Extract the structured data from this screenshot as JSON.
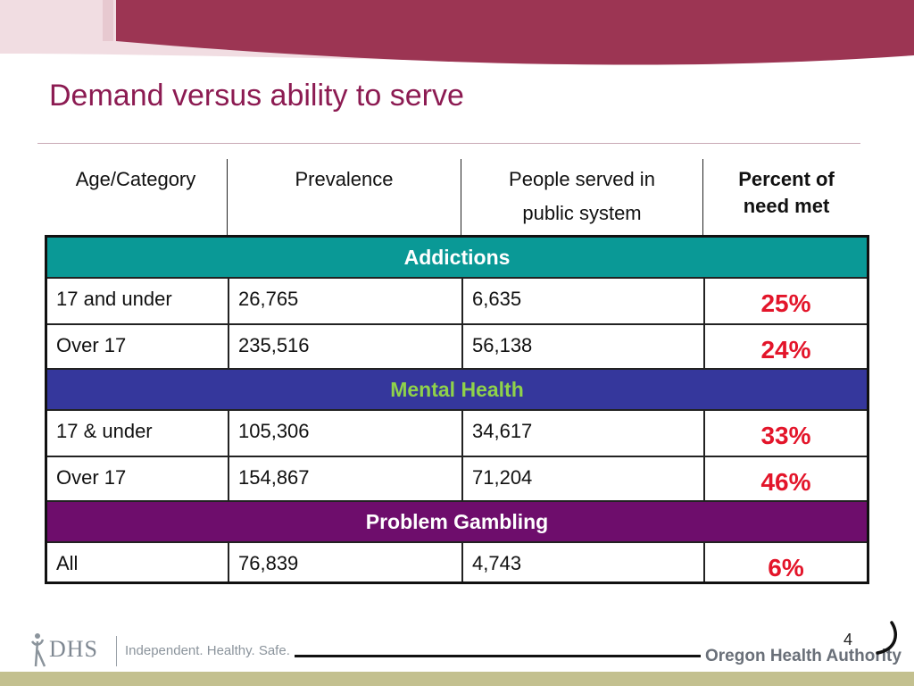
{
  "slide": {
    "title": "Demand versus ability to serve",
    "page_number": "4"
  },
  "table": {
    "headers": [
      "Age/Category",
      "Prevalence",
      "People served in public system",
      "Percent of need met"
    ],
    "header_lines": {
      "col3": [
        "People served in",
        "public system"
      ],
      "col4": [
        "Percent of",
        "need met"
      ]
    },
    "sections": [
      {
        "name": "Addictions",
        "rows": [
          {
            "category": "17 and under",
            "prevalence": "26,765",
            "served": "6,635",
            "percent": "25%"
          },
          {
            "category": "Over 17",
            "prevalence": "235,516",
            "served": "56,138",
            "percent": "24%"
          }
        ]
      },
      {
        "name": "Mental Health",
        "rows": [
          {
            "category": "17 & under",
            "prevalence": "105,306",
            "served": "34,617",
            "percent": "33%"
          },
          {
            "category": "Over 17",
            "prevalence": "154,867",
            "served": "71,204",
            "percent": "46%"
          }
        ]
      },
      {
        "name": "Problem Gambling",
        "rows": [
          {
            "category": "All",
            "prevalence": "76,839",
            "served": "4,743",
            "percent": "6%"
          }
        ]
      }
    ]
  },
  "colors": {
    "title": "#8c1b52",
    "addictions_band": "#0a9996",
    "mental_health_band": "#35379c",
    "mental_health_text": "#8fd24a",
    "gambling_band": "#6e0d6c",
    "percent_text": "#e3152a",
    "banner": "#9c3553"
  },
  "footer": {
    "dhs_logo_text": "DHS",
    "tagline": "Independent. Healthy. Safe.",
    "oha_logo_text": "Oregon Health Authority"
  }
}
